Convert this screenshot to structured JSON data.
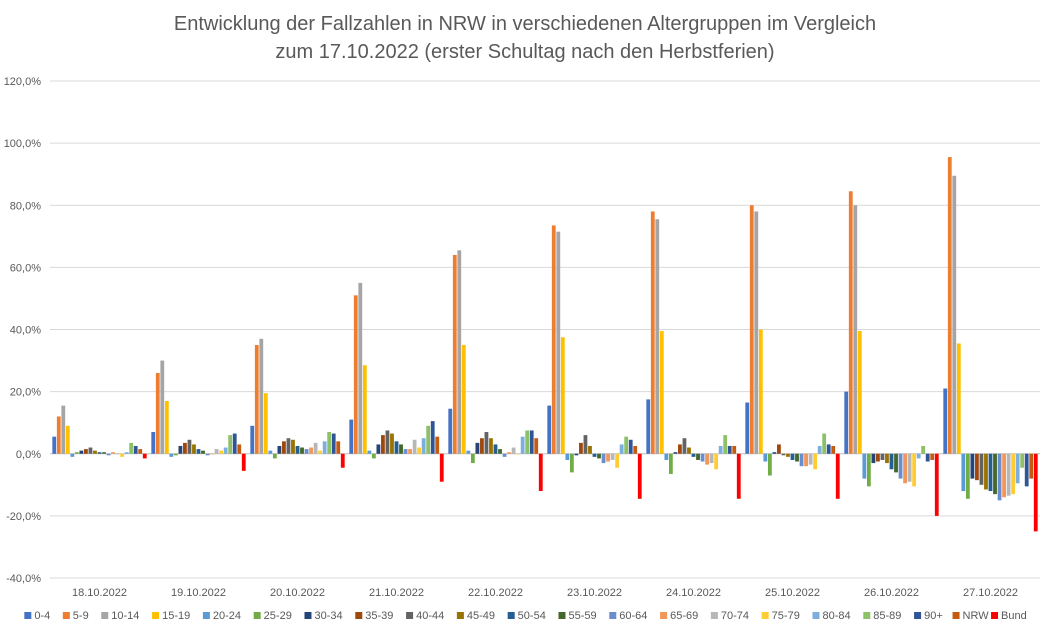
{
  "chart_data": {
    "type": "bar",
    "title_lines": [
      "Entwicklung der Fallzahlen in NRW in verschiedenen Altergruppen im Vergleich",
      "zum 17.10.2022 (erster Schultag nach den Herbstferien)"
    ],
    "xlabel": "",
    "ylabel": "",
    "ylim": [
      -40,
      120
    ],
    "y_ticks": [
      -40,
      -20,
      0,
      20,
      40,
      60,
      80,
      100,
      120
    ],
    "y_tick_labels": [
      "-40,0%",
      "-20,0%",
      "0,0%",
      "20,0%",
      "40,0%",
      "60,0%",
      "80,0%",
      "100,0%",
      "120,0%"
    ],
    "grid": true,
    "legend_position": "bottom",
    "categories": [
      "18.10.2022",
      "19.10.2022",
      "20.10.2022",
      "21.10.2022",
      "22.10.2022",
      "23.10.2022",
      "24.10.2022",
      "25.10.2022",
      "26.10.2022",
      "27.10.2022"
    ],
    "series": [
      {
        "name": "0-4",
        "color": "#4472c4",
        "values": [
          5.5,
          7,
          9,
          11,
          14.5,
          15.5,
          17.5,
          16.5,
          20,
          21
        ]
      },
      {
        "name": "5-9",
        "color": "#ed7d31",
        "values": [
          12,
          26,
          35,
          51,
          64,
          73.5,
          78,
          80,
          84.5,
          95.5
        ]
      },
      {
        "name": "10-14",
        "color": "#a5a5a5",
        "values": [
          15.5,
          30,
          37,
          55,
          65.5,
          71.5,
          75.5,
          78,
          80,
          89.5
        ]
      },
      {
        "name": "15-19",
        "color": "#ffc000",
        "values": [
          9,
          17,
          19.5,
          28.5,
          35,
          37.5,
          39.5,
          40,
          39.5,
          35.5
        ]
      },
      {
        "name": "20-24",
        "color": "#5b9bd5",
        "values": [
          -1,
          -1,
          1,
          1,
          1,
          -2,
          -2,
          -2.5,
          -8,
          -12
        ]
      },
      {
        "name": "25-29",
        "color": "#70ad47",
        "values": [
          0.5,
          -0.5,
          -1.5,
          -1.5,
          -3,
          -6,
          -6.5,
          -7,
          -10.5,
          -14.5
        ]
      },
      {
        "name": "30-34",
        "color": "#264478",
        "values": [
          1,
          2.5,
          2.5,
          3,
          3.5,
          -0.5,
          0.5,
          0.5,
          -3,
          -8
        ]
      },
      {
        "name": "35-39",
        "color": "#9e480e",
        "values": [
          1.5,
          3.5,
          4,
          6,
          5,
          3.5,
          3,
          3,
          -2.5,
          -8.5
        ]
      },
      {
        "name": "40-44",
        "color": "#636363",
        "values": [
          2,
          4.5,
          5,
          7.5,
          7,
          6,
          5,
          -0.5,
          -2,
          -10
        ]
      },
      {
        "name": "45-49",
        "color": "#997300",
        "values": [
          1,
          3,
          4.5,
          6.5,
          5,
          2.5,
          2,
          -1,
          -3,
          -11.5
        ]
      },
      {
        "name": "50-54",
        "color": "#255e91",
        "values": [
          0.5,
          1.5,
          2.5,
          4,
          3,
          -1,
          -1,
          -2,
          -5,
          -12
        ]
      },
      {
        "name": "55-59",
        "color": "#43682b",
        "values": [
          0.5,
          1,
          2,
          3,
          1.5,
          -1.5,
          -2,
          -2.5,
          -6,
          -13
        ]
      },
      {
        "name": "60-64",
        "color": "#698ed0",
        "values": [
          -0.5,
          -0.5,
          1.5,
          1.5,
          -1,
          -3,
          -2.5,
          -4,
          -8,
          -15
        ]
      },
      {
        "name": "65-69",
        "color": "#f1975a",
        "values": [
          0.5,
          0,
          2,
          1.5,
          0.5,
          -2.5,
          -3.5,
          -4,
          -9.5,
          -14
        ]
      },
      {
        "name": "70-74",
        "color": "#b7b7b7",
        "values": [
          0,
          1.5,
          3.5,
          4.5,
          2,
          -2,
          -3,
          -3.5,
          -9,
          -13.5
        ]
      },
      {
        "name": "75-79",
        "color": "#ffcd33",
        "values": [
          -1,
          1,
          1,
          2,
          0,
          -4.5,
          -5,
          -5,
          -10.5,
          -13
        ]
      },
      {
        "name": "80-84",
        "color": "#7cafdd",
        "values": [
          0.5,
          2,
          4,
          5,
          5.5,
          3,
          2.5,
          2.5,
          -1.5,
          -9.5
        ]
      },
      {
        "name": "85-89",
        "color": "#8cc168",
        "values": [
          3.5,
          6,
          7,
          9,
          7.5,
          5.5,
          6,
          6.5,
          2.5,
          -4.5
        ]
      },
      {
        "name": "90+",
        "color": "#2f5597",
        "values": [
          2.5,
          6.5,
          6.5,
          10.5,
          7.5,
          4.5,
          2.5,
          3,
          -2.5,
          -10.5
        ]
      },
      {
        "name": "NRW",
        "color": "#c55a11",
        "values": [
          1.5,
          3,
          4,
          5.5,
          5,
          2.5,
          2.5,
          2.5,
          -2,
          -8
        ]
      },
      {
        "name": "Bund",
        "color": "#ff0000",
        "values": [
          -1.5,
          -5.5,
          -4.5,
          -9,
          -12,
          -14.5,
          -14.5,
          -14.5,
          -20,
          -25
        ]
      }
    ]
  }
}
